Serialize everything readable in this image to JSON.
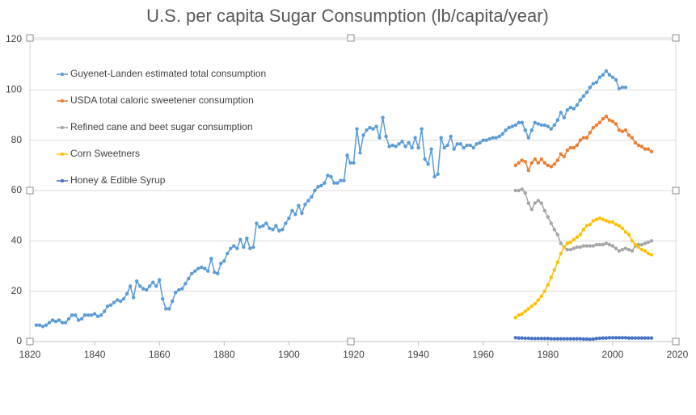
{
  "chart_data": {
    "type": "line",
    "title": "U.S. per capita Sugar Consumption (lb/capita/year)",
    "xlim": [
      1820,
      2020
    ],
    "xticks": [
      1820,
      1840,
      1860,
      1880,
      1900,
      1920,
      1940,
      1960,
      1980,
      2000,
      2020
    ],
    "ylim": [
      0,
      120
    ],
    "yticks": [
      0,
      20,
      40,
      60,
      80,
      100,
      120
    ],
    "grid": true,
    "series": [
      {
        "name": "Guyenet-Landen estimated total consumption",
        "color": "#5b9bd5",
        "x": [
          1822,
          1823,
          1824,
          1825,
          1826,
          1827,
          1828,
          1829,
          1830,
          1831,
          1832,
          1833,
          1834,
          1835,
          1836,
          1837,
          1838,
          1839,
          1840,
          1841,
          1842,
          1843,
          1844,
          1845,
          1846,
          1847,
          1848,
          1849,
          1850,
          1851,
          1852,
          1853,
          1854,
          1855,
          1856,
          1857,
          1858,
          1859,
          1860,
          1861,
          1862,
          1863,
          1864,
          1865,
          1866,
          1867,
          1868,
          1869,
          1870,
          1871,
          1872,
          1873,
          1874,
          1875,
          1876,
          1877,
          1878,
          1879,
          1880,
          1881,
          1882,
          1883,
          1884,
          1885,
          1886,
          1887,
          1888,
          1889,
          1890,
          1891,
          1892,
          1893,
          1894,
          1895,
          1896,
          1897,
          1898,
          1899,
          1900,
          1901,
          1902,
          1903,
          1904,
          1905,
          1906,
          1907,
          1908,
          1909,
          1910,
          1911,
          1912,
          1913,
          1914,
          1915,
          1916,
          1917,
          1918,
          1919,
          1920,
          1921,
          1922,
          1923,
          1924,
          1925,
          1926,
          1927,
          1928,
          1929,
          1930,
          1931,
          1932,
          1933,
          1934,
          1935,
          1936,
          1937,
          1938,
          1939,
          1940,
          1941,
          1942,
          1943,
          1944,
          1945,
          1946,
          1947,
          1948,
          1949,
          1950,
          1951,
          1952,
          1953,
          1954,
          1955,
          1956,
          1957,
          1958,
          1959,
          1960,
          1961,
          1962,
          1963,
          1964,
          1965,
          1966,
          1967,
          1968,
          1969,
          1970,
          1971,
          1972,
          1973,
          1974,
          1975,
          1976,
          1977,
          1978,
          1979,
          1980,
          1981,
          1982,
          1983,
          1984,
          1985,
          1986,
          1987,
          1988,
          1989,
          1990,
          1991,
          1992,
          1993,
          1994,
          1995,
          1996,
          1997,
          1998,
          1999,
          2000,
          2001,
          2002,
          2003,
          2004
        ],
        "values": [
          6.5,
          6.5,
          6,
          6.5,
          7.5,
          8.5,
          8,
          8.5,
          7.5,
          7.5,
          9,
          10.5,
          10.5,
          8.5,
          9,
          10.5,
          10.5,
          10.5,
          11,
          10,
          10.5,
          12,
          14,
          14.5,
          15.5,
          16.5,
          16,
          17,
          19,
          22,
          17.5,
          24,
          22,
          21,
          20.5,
          22,
          23.5,
          22,
          24.5,
          17,
          13,
          13,
          16,
          19.5,
          20.5,
          21,
          23,
          25,
          27,
          28,
          29,
          29.5,
          29,
          28,
          33,
          27.5,
          27,
          31,
          32,
          35,
          37,
          38,
          37,
          40.5,
          37.5,
          41,
          37,
          37.5,
          47,
          45.5,
          46,
          47,
          45,
          44.5,
          46,
          44,
          44.5,
          47,
          49,
          52,
          50.5,
          54,
          51,
          54.5,
          56,
          57.5,
          60,
          61.5,
          62,
          63,
          66,
          65.5,
          63,
          63,
          64,
          64,
          74,
          71,
          71,
          84.5,
          75,
          82,
          84,
          85,
          84.5,
          85.5,
          81,
          89,
          81.5,
          77.5,
          78,
          77.5,
          78.5,
          79.5,
          77.5,
          79,
          77,
          81,
          77,
          84.5,
          72.5,
          70.5,
          76.5,
          65.5,
          66.5,
          81,
          77,
          78,
          81.5,
          76.5,
          78.5,
          78.5,
          77,
          78,
          78,
          77,
          78.5,
          79,
          80,
          80,
          80.5,
          81,
          81,
          81.5,
          82.5,
          84,
          85,
          85.5,
          86,
          87,
          87,
          84,
          81,
          84,
          87,
          86.5,
          86,
          86,
          85.5,
          84.5,
          86,
          88,
          91,
          89,
          92,
          93,
          92.5,
          94,
          96,
          97.5,
          99,
          101,
          102.5,
          103,
          105,
          106,
          107.5,
          106,
          105,
          104,
          100.5,
          101,
          101
        ]
      },
      {
        "name": "USDA total caloric sweetener consumption",
        "color": "#ed7d31",
        "x": [
          1970,
          1971,
          1972,
          1973,
          1974,
          1975,
          1976,
          1977,
          1978,
          1979,
          1980,
          1981,
          1982,
          1983,
          1984,
          1985,
          1986,
          1987,
          1988,
          1989,
          1990,
          1991,
          1992,
          1993,
          1994,
          1995,
          1996,
          1997,
          1998,
          1999,
          2000,
          2001,
          2002,
          2003,
          2004,
          2005,
          2006,
          2007,
          2008,
          2009,
          2010,
          2011,
          2012
        ],
        "values": [
          70,
          71,
          72,
          71.5,
          68,
          71,
          72.5,
          71,
          72.5,
          71,
          70,
          69.5,
          70.5,
          72,
          74.5,
          73.5,
          76,
          77,
          77,
          78,
          80,
          81,
          81,
          83,
          85,
          86,
          87,
          88.5,
          89.5,
          88,
          87.5,
          86.5,
          84,
          83.5,
          84,
          82,
          81,
          79,
          78,
          77.5,
          76.5,
          76.5,
          75.5
        ]
      },
      {
        "name": "Refined cane and beet sugar consumption",
        "color": "#a5a5a5",
        "x": [
          1970,
          1971,
          1972,
          1973,
          1974,
          1975,
          1976,
          1977,
          1978,
          1979,
          1980,
          1981,
          1982,
          1983,
          1984,
          1985,
          1986,
          1987,
          1988,
          1989,
          1990,
          1991,
          1992,
          1993,
          1994,
          1995,
          1996,
          1997,
          1998,
          1999,
          2000,
          2001,
          2002,
          2003,
          2004,
          2005,
          2006,
          2007,
          2008,
          2009,
          2010,
          2011,
          2012
        ],
        "values": [
          60,
          60,
          60.5,
          59,
          55,
          52.5,
          55,
          56,
          55,
          52,
          49.5,
          47,
          44.5,
          42.5,
          39,
          37.5,
          36.5,
          36.5,
          37,
          37.5,
          37.5,
          38,
          38,
          38,
          38,
          38.5,
          38.5,
          38.5,
          39,
          38.5,
          38,
          37,
          36,
          36.5,
          37,
          36.5,
          36,
          38,
          38.5,
          38.5,
          39,
          39.5,
          40
        ]
      },
      {
        "name": "Corn Sweetners",
        "color": "#ffc000",
        "x": [
          1970,
          1971,
          1972,
          1973,
          1974,
          1975,
          1976,
          1977,
          1978,
          1979,
          1980,
          1981,
          1982,
          1983,
          1984,
          1985,
          1986,
          1987,
          1988,
          1989,
          1990,
          1991,
          1992,
          1993,
          1994,
          1995,
          1996,
          1997,
          1998,
          1999,
          2000,
          2001,
          2002,
          2003,
          2004,
          2005,
          2006,
          2007,
          2008,
          2009,
          2010,
          2011,
          2012
        ],
        "values": [
          9.5,
          10.5,
          11,
          12,
          13,
          14,
          15,
          16.5,
          18,
          20,
          22.5,
          25.5,
          28.5,
          31.5,
          35,
          37.5,
          39,
          39.5,
          40.5,
          41.5,
          42.5,
          44.5,
          46,
          46.5,
          48,
          48.5,
          49,
          48.5,
          48,
          47.5,
          47.5,
          46.5,
          46,
          45,
          43.5,
          42.5,
          40,
          38.5,
          37.5,
          36.5,
          36,
          35,
          34.5
        ]
      },
      {
        "name": "Honey & Edible Syrup",
        "color": "#4472c4",
        "x": [
          1970,
          1971,
          1972,
          1973,
          1974,
          1975,
          1976,
          1977,
          1978,
          1979,
          1980,
          1981,
          1982,
          1983,
          1984,
          1985,
          1986,
          1987,
          1988,
          1989,
          1990,
          1991,
          1992,
          1993,
          1994,
          1995,
          1996,
          1997,
          1998,
          1999,
          2000,
          2001,
          2002,
          2003,
          2004,
          2005,
          2006,
          2007,
          2008,
          2009,
          2010,
          2011,
          2012
        ],
        "values": [
          1.5,
          1.4,
          1.4,
          1.3,
          1.3,
          1.2,
          1.2,
          1.2,
          1.2,
          1.2,
          1.2,
          1.1,
          1.1,
          1.1,
          1.1,
          1.1,
          1.1,
          1.1,
          1.1,
          1.1,
          1.1,
          1.0,
          1.0,
          0.9,
          1.0,
          1.2,
          1.3,
          1.4,
          1.4,
          1.5,
          1.5,
          1.5,
          1.5,
          1.5,
          1.5,
          1.4,
          1.4,
          1.4,
          1.4,
          1.4,
          1.4,
          1.4,
          1.4
        ]
      }
    ]
  }
}
